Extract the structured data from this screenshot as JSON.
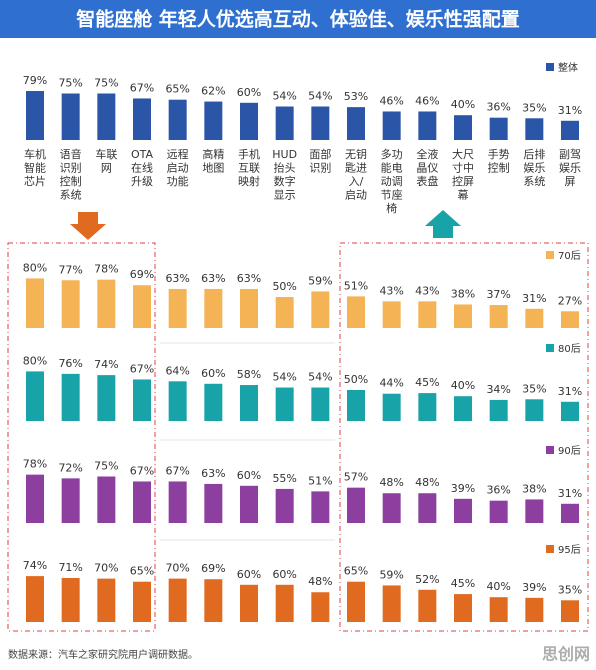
{
  "chart_data": {
    "type": "bar",
    "title": "智能座舱 年轻人优选高互动、体验佳、娱乐性强配置",
    "categories": [
      [
        "车机",
        "智能",
        "芯片"
      ],
      [
        "语音",
        "识别",
        "控制",
        "系统"
      ],
      [
        "车联",
        "网"
      ],
      [
        "OTA",
        "在线",
        "升级"
      ],
      [
        "远程",
        "启动",
        "功能"
      ],
      [
        "高精",
        "地图"
      ],
      [
        "手机",
        "互联",
        "映射"
      ],
      [
        "HUD",
        "抬头",
        "数字",
        "显示"
      ],
      [
        "面部",
        "识别"
      ],
      [
        "无钥",
        "匙进",
        "入/",
        "启动"
      ],
      [
        "多功",
        "能电",
        "动调",
        "节座",
        "椅"
      ],
      [
        "全液",
        "晶仪",
        "表盘"
      ],
      [
        "大尺",
        "寸中",
        "控屏",
        "幕"
      ],
      [
        "手势",
        "控制"
      ],
      [
        "后排",
        "娱乐",
        "系统"
      ],
      [
        "副驾",
        "娱乐",
        "屏"
      ]
    ],
    "series": [
      {
        "name": "整体",
        "color": "#2b55a6",
        "values": [
          79,
          75,
          75,
          67,
          65,
          62,
          60,
          54,
          54,
          53,
          46,
          46,
          40,
          36,
          35,
          31
        ],
        "value_labels": [
          "79%",
          "75%",
          "75%",
          "67%",
          "65%",
          "62%",
          "60%",
          "54%",
          "54%",
          "53%",
          "46%",
          "46%",
          "40%",
          "36%",
          "35%",
          "31%"
        ]
      },
      {
        "name": "70后",
        "color": "#f4b456",
        "values": [
          80,
          77,
          78,
          69,
          63,
          63,
          63,
          50,
          59,
          51,
          43,
          43,
          38,
          37,
          31,
          27
        ],
        "value_labels": [
          "80%",
          "77%",
          "78%",
          "69%",
          "63%",
          "63%",
          "63%",
          "50%",
          "59%",
          "51%",
          "43%",
          "43%",
          "38%",
          "37%",
          "31%",
          "27%"
        ]
      },
      {
        "name": "80后",
        "color": "#18a3a9",
        "values": [
          80,
          76,
          74,
          67,
          64,
          60,
          58,
          54,
          54,
          50,
          44,
          45,
          40,
          34,
          35,
          31
        ],
        "value_labels": [
          "80%",
          "76%",
          "74%",
          "67%",
          "64%",
          "60%",
          "58%",
          "54%",
          "54%",
          "50%",
          "44%",
          "45%",
          "40%",
          "34%",
          "35%",
          "31%"
        ]
      },
      {
        "name": "90后",
        "color": "#8d3f9f",
        "values": [
          78,
          72,
          75,
          67,
          67,
          63,
          60,
          55,
          51,
          57,
          48,
          48,
          39,
          36,
          38,
          31
        ],
        "value_labels": [
          "78%",
          "72%",
          "75%",
          "67%",
          "67%",
          "63%",
          "60%",
          "55%",
          "51%",
          "57%",
          "48%",
          "48%",
          "39%",
          "36%",
          "38%",
          "31%"
        ]
      },
      {
        "name": "95后",
        "color": "#e06a1f",
        "values": [
          74,
          71,
          70,
          65,
          70,
          69,
          60,
          60,
          48,
          65,
          59,
          52,
          45,
          40,
          39,
          35
        ],
        "value_labels": [
          "74%",
          "71%",
          "70%",
          "65%",
          "70%",
          "69%",
          "60%",
          "60%",
          "48%",
          "65%",
          "59%",
          "52%",
          "45%",
          "40%",
          "39%",
          "35%"
        ]
      }
    ]
  },
  "source": "数据来源：汽车之家研究院用户调研数据。",
  "watermark": "思创网"
}
